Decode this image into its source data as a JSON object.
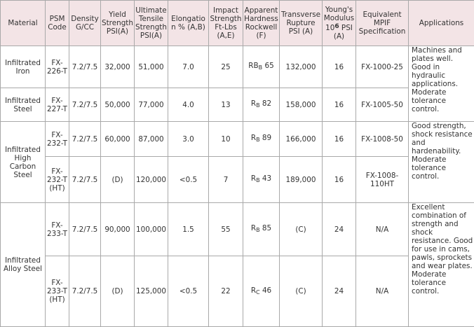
{
  "header": {
    "material": "Material",
    "psm_code": "PSM Code",
    "density": "Density G/CC",
    "yield": "Yield Strength PSI(A)",
    "ultimate": "Ultimate Tensile Strength PSI(A)",
    "elongation": "Elongation % (A,B)",
    "impact": "Impact Strength Ft-Lbs (A,E)",
    "hardness": "Apparent Hardness Rockwell (F)",
    "transverse": "Transverse Rupture PSI (A)",
    "youngs_pre": "Young's Modulus 10",
    "youngs_exp": "6",
    "youngs_post": " PSI (A)",
    "mpif": "Equivalent MPIF Specification",
    "applications": "Applications"
  },
  "groups": [
    {
      "material": "Infiltrated Iron",
      "applications": "Machines and plates well. Good in hydraulic applications. Moderate tolerance control.",
      "rows": [
        {
          "code": "FX-226-T",
          "density": "7.2/7.5",
          "yield": "32,000",
          "ultimate": "51,000",
          "elongation": "7.0",
          "impact": "25",
          "hardness_base": "RB",
          "hardness_sub": "B",
          "hardness_val": " 65",
          "transverse": "132,000",
          "youngs": "16",
          "mpif": "FX-1000-25"
        }
      ]
    },
    {
      "material": "Infiltrated Steel",
      "rows": [
        {
          "code": "FX-227-T",
          "density": "7.2/7.5",
          "yield": "50,000",
          "ultimate": "77,000",
          "elongation": "4.0",
          "impact": "13",
          "hardness_base": "R",
          "hardness_sub": "B",
          "hardness_val": " 82",
          "transverse": "158,000",
          "youngs": "16",
          "mpif": "FX-1005-50"
        }
      ]
    },
    {
      "material": "Infiltrated High Carbon Steel",
      "applications": "Good strength, shock resistance and hardenability. Moderate tolerance control.",
      "rows": [
        {
          "code": "FX-232-T",
          "density": "7.2/7.5",
          "yield": "60,000",
          "ultimate": "87,000",
          "elongation": "3.0",
          "impact": "10",
          "hardness_base": "R",
          "hardness_sub": "B",
          "hardness_val": " 89",
          "transverse": "166,000",
          "youngs": "16",
          "mpif": "FX-1008-50"
        },
        {
          "code": "FX-232-T (HT)",
          "density": "7.2/7.5",
          "yield": "(D)",
          "ultimate": "120,000",
          "elongation": "<0.5",
          "impact": "7",
          "hardness_base": "R",
          "hardness_sub": "B",
          "hardness_val": " 43",
          "transverse": "189,000",
          "youngs": "16",
          "mpif": "FX-1008-110HT"
        }
      ]
    },
    {
      "material": "Infiltrated Alloy Steel",
      "applications": "Excellent combination of strength and shock resistance. Good for use in cams, pawls, sprockets and wear plates. Moderate tolerance control.",
      "rows": [
        {
          "code": "FX-233-T",
          "density": "7.2/7.5",
          "yield": "90,000",
          "ultimate": "100,000",
          "elongation": "1.5",
          "impact": "55",
          "hardness_base": "R",
          "hardness_sub": "B",
          "hardness_val": " 85",
          "transverse": "(C)",
          "youngs": "24",
          "mpif": "N/A"
        },
        {
          "code": "FX-233-T (HT)",
          "density": "7.2/7.5",
          "yield": "(D)",
          "ultimate": "125,000",
          "elongation": "<0.5",
          "impact": "22",
          "hardness_base": "R",
          "hardness_sub": "C",
          "hardness_val": " 46",
          "transverse": "(C)",
          "youngs": "24",
          "mpif": "N/A"
        }
      ]
    }
  ]
}
